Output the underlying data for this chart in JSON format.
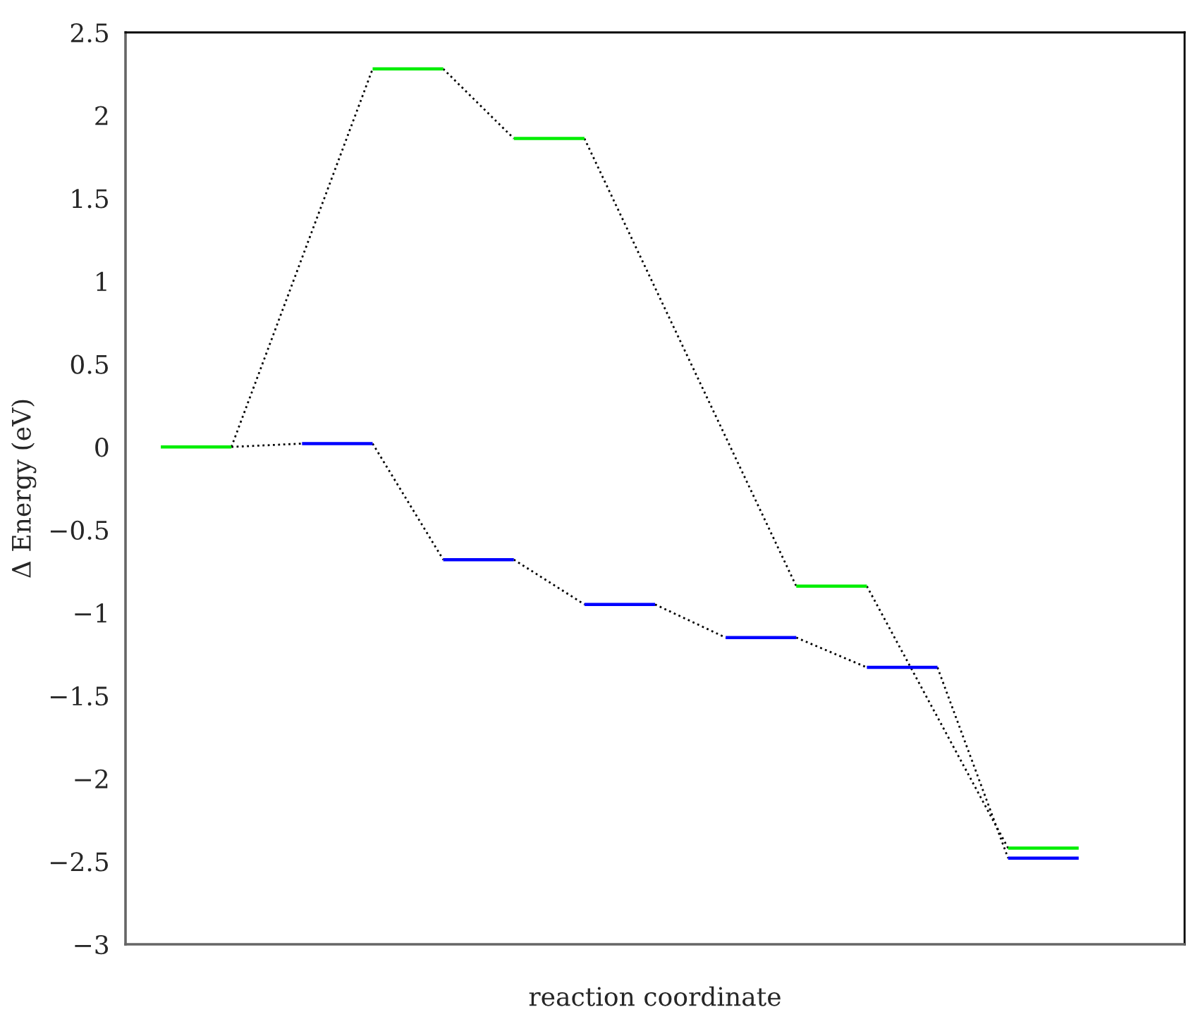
{
  "chart_data": {
    "type": "line",
    "xlabel": "reaction coordinate",
    "ylabel": "Δ Energy (eV)",
    "categories": [
      null,
      null,
      null,
      null,
      null,
      null,
      null,
      null,
      null,
      null,
      null,
      null,
      null,
      null,
      null
    ],
    "series": [
      {
        "color": "#000000",
        "line_style": "dotted",
        "values": [
          null,
          0,
          0.02,
          null,
          null,
          null,
          null,
          null,
          null,
          null,
          null,
          null,
          null,
          null,
          null
        ]
      },
      {
        "color": "#000000",
        "line_style": "dotted",
        "values": [
          null,
          null,
          null,
          0.02,
          -0.68,
          null,
          null,
          null,
          null,
          null,
          null,
          null,
          null,
          null,
          null
        ]
      },
      {
        "color": "#000000",
        "line_style": "dotted",
        "values": [
          null,
          null,
          null,
          null,
          null,
          -0.68,
          -0.95,
          null,
          null,
          null,
          null,
          null,
          null,
          null,
          null
        ]
      },
      {
        "color": "#000000",
        "line_style": "dotted",
        "values": [
          null,
          null,
          null,
          null,
          null,
          null,
          null,
          -0.95,
          -1.15,
          null,
          null,
          null,
          null,
          null,
          null
        ]
      },
      {
        "color": "#000000",
        "line_style": "dotted",
        "values": [
          null,
          null,
          null,
          null,
          null,
          null,
          null,
          null,
          null,
          -1.15,
          -1.33,
          null,
          null,
          null,
          null
        ]
      },
      {
        "color": "#000000",
        "line_style": "dotted",
        "values": [
          null,
          null,
          null,
          null,
          null,
          null,
          null,
          null,
          null,
          null,
          null,
          -1.33,
          -2.48,
          null,
          null
        ]
      },
      {
        "color": "#000000",
        "line_style": "dotted",
        "values": [
          null,
          0,
          null,
          2.28,
          null,
          null,
          null,
          null,
          null,
          null,
          null,
          null,
          null,
          null,
          null
        ]
      },
      {
        "color": "#000000",
        "line_style": "dotted",
        "values": [
          null,
          null,
          null,
          null,
          2.28,
          1.86,
          null,
          null,
          null,
          null,
          null,
          null,
          null,
          null,
          null
        ]
      },
      {
        "color": "#000000",
        "line_style": "dotted",
        "values": [
          null,
          null,
          null,
          null,
          null,
          null,
          1.86,
          null,
          null,
          -0.84,
          null,
          null,
          null,
          null,
          null
        ]
      },
      {
        "color": "#000000",
        "line_style": "dotted",
        "values": [
          null,
          null,
          null,
          null,
          null,
          null,
          null,
          null,
          null,
          null,
          -0.84,
          null,
          -2.42,
          null,
          null
        ]
      },
      {
        "color": "#0000ff",
        "values": [
          null,
          null,
          0.02,
          0.02,
          null,
          null,
          null,
          null,
          null,
          null,
          null,
          null,
          null,
          null,
          null
        ]
      },
      {
        "color": "#0000ff",
        "values": [
          null,
          null,
          null,
          null,
          -0.68,
          -0.68,
          null,
          null,
          null,
          null,
          null,
          null,
          null,
          null,
          null
        ]
      },
      {
        "color": "#0000ff",
        "values": [
          null,
          null,
          null,
          null,
          null,
          null,
          -0.95,
          -0.95,
          null,
          null,
          null,
          null,
          null,
          null,
          null
        ]
      },
      {
        "color": "#0000ff",
        "values": [
          null,
          null,
          null,
          null,
          null,
          null,
          null,
          null,
          -1.15,
          -1.15,
          null,
          null,
          null,
          null,
          null
        ]
      },
      {
        "color": "#0000ff",
        "values": [
          null,
          null,
          null,
          null,
          null,
          null,
          null,
          null,
          null,
          null,
          -1.33,
          -1.33,
          null,
          null,
          null
        ]
      },
      {
        "color": "#0000ff",
        "values": [
          null,
          null,
          null,
          null,
          null,
          null,
          null,
          null,
          null,
          null,
          null,
          null,
          -2.48,
          -2.48,
          null
        ]
      },
      {
        "color": "#00ee00",
        "values": [
          0,
          0,
          null,
          null,
          null,
          null,
          null,
          null,
          null,
          null,
          null,
          null,
          null,
          null,
          null
        ]
      },
      {
        "color": "#00ee00",
        "values": [
          null,
          null,
          null,
          2.28,
          2.28,
          null,
          null,
          null,
          null,
          null,
          null,
          null,
          null,
          null,
          null
        ]
      },
      {
        "color": "#00ee00",
        "values": [
          null,
          null,
          null,
          null,
          null,
          1.86,
          1.86,
          null,
          null,
          null,
          null,
          null,
          null,
          null,
          null
        ]
      },
      {
        "color": "#00ee00",
        "values": [
          null,
          null,
          null,
          null,
          null,
          null,
          null,
          null,
          null,
          -0.84,
          -0.84,
          null,
          null,
          null,
          null
        ]
      },
      {
        "color": "#00ee00",
        "values": [
          null,
          null,
          null,
          null,
          null,
          null,
          null,
          null,
          null,
          null,
          null,
          null,
          -2.42,
          -2.42,
          null
        ]
      }
    ],
    "ylim": [
      -3,
      2.5
    ],
    "yticks": [
      {
        "value": 2.5,
        "label": "2.5"
      },
      {
        "value": 2,
        "label": "2"
      },
      {
        "value": 1.5,
        "label": "1.5"
      },
      {
        "value": 1,
        "label": "1"
      },
      {
        "value": 0.5,
        "label": "0.5"
      },
      {
        "value": 0,
        "label": "0"
      },
      {
        "value": -0.5,
        "label": "−0.5"
      },
      {
        "value": -1,
        "label": "−1"
      },
      {
        "value": -1.5,
        "label": "−1.5"
      },
      {
        "value": -2,
        "label": "−2"
      },
      {
        "value": -2.5,
        "label": "−2.5"
      },
      {
        "value": -3,
        "label": "−3"
      }
    ],
    "tick_labels": "y",
    "grid": false,
    "legend": false
  }
}
